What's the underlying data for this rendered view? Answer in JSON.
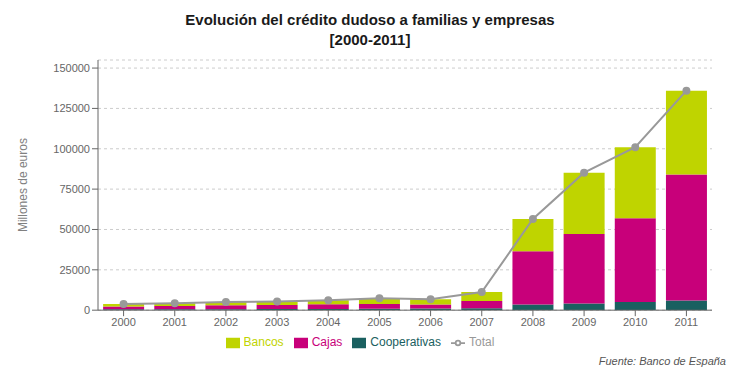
{
  "chart_data": {
    "type": "bar",
    "title": "Evolución del crédito dudoso a familias y empresas",
    "subtitle": "[2000-2011]",
    "y_label": "Millones de euros",
    "annotations": [
      "Fuente: Banco de España"
    ],
    "categories": [
      "2000",
      "2001",
      "2002",
      "2003",
      "2004",
      "2005",
      "2006",
      "2007",
      "2008",
      "2009",
      "2010",
      "2011"
    ],
    "stacked": true,
    "grid": true,
    "legend": "bottom",
    "ylim": [
      0,
      155000
    ],
    "yticks": [
      0,
      25000,
      50000,
      75000,
      100000,
      125000,
      150000
    ],
    "series": [
      {
        "name": "Cooperativas",
        "type": "bar",
        "color": "#1a6060",
        "values": [
          500,
          550,
          600,
          700,
          800,
          900,
          1000,
          1200,
          3500,
          4200,
          5000,
          6000
        ]
      },
      {
        "name": "Cajas",
        "type": "bar",
        "color": "#c8007a",
        "values": [
          1800,
          2000,
          2500,
          2500,
          2800,
          3000,
          2500,
          4500,
          33000,
          43000,
          52000,
          78000
        ]
      },
      {
        "name": "Bancos",
        "type": "bar",
        "color": "#bfd400",
        "values": [
          1500,
          1700,
          2000,
          2200,
          2500,
          3500,
          3200,
          5500,
          20000,
          38000,
          44000,
          52000
        ]
      },
      {
        "name": "Total",
        "type": "line",
        "color": "#999999",
        "marker": "circle",
        "values": [
          3800,
          4250,
          5100,
          5400,
          6100,
          7400,
          6700,
          11200,
          56500,
          85200,
          101000,
          136000
        ]
      }
    ]
  }
}
